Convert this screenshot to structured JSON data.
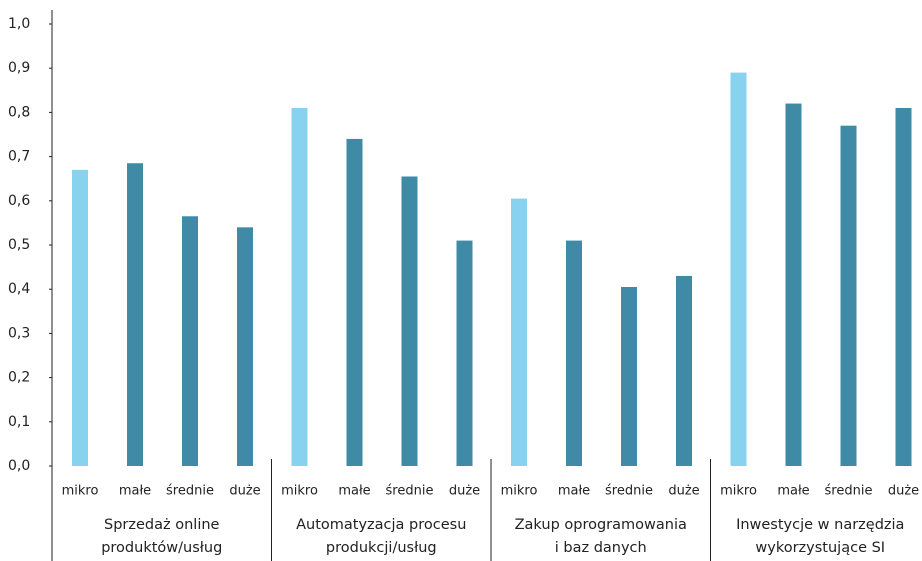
{
  "chart_data": {
    "type": "bar",
    "ylim": [
      0,
      1
    ],
    "yticks": [
      {
        "value": 0,
        "label": "0,0"
      },
      {
        "value": 0.1,
        "label": "0,1"
      },
      {
        "value": 0.2,
        "label": "0,2"
      },
      {
        "value": 0.3,
        "label": "0,3"
      },
      {
        "value": 0.4,
        "label": "0,4"
      },
      {
        "value": 0.5,
        "label": "0,5"
      },
      {
        "value": 0.6,
        "label": "0,6"
      },
      {
        "value": 0.7,
        "label": "0,7"
      },
      {
        "value": 0.8,
        "label": "0,8"
      },
      {
        "value": 0.9,
        "label": "0,9"
      },
      {
        "value": 1,
        "label": "1,0"
      }
    ],
    "colors": [
      "#87d3ef",
      "#3f8ba6",
      "#3f8ba6",
      "#3f8ba6"
    ],
    "groups": [
      {
        "label": [
          "Sprzedaż online",
          "produktów/usług"
        ],
        "categories": [
          "mikro",
          "małe",
          "średnie",
          "duże"
        ],
        "values": [
          0.67,
          0.685,
          0.565,
          0.54
        ]
      },
      {
        "label": [
          "Automatyzacja procesu",
          "produkcji/usług"
        ],
        "categories": [
          "mikro",
          "małe",
          "średnie",
          "duże"
        ],
        "values": [
          0.81,
          0.74,
          0.655,
          0.51
        ]
      },
      {
        "label": [
          "Zakup oprogramowania",
          "i baz danych"
        ],
        "categories": [
          "mikro",
          "małe",
          "średnie",
          "duże"
        ],
        "values": [
          0.605,
          0.51,
          0.405,
          0.43
        ]
      },
      {
        "label": [
          "Inwestycje w narzędzia",
          "wykorzystujące SI"
        ],
        "categories": [
          "mikro",
          "małe",
          "średnie",
          "duże"
        ],
        "values": [
          0.89,
          0.82,
          0.77,
          0.81
        ]
      }
    ]
  }
}
